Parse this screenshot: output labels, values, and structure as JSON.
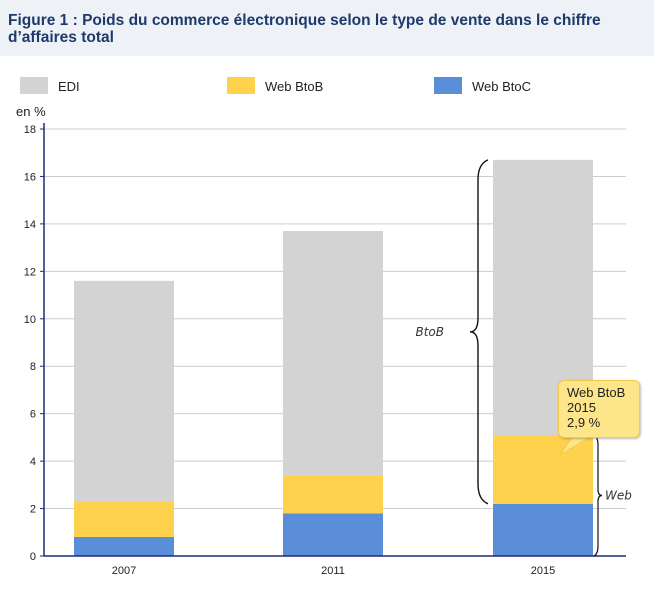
{
  "title": "Figure 1 : Poids du commerce électronique selon le type de vente dans le chiffre d’affaires total",
  "colors": {
    "EDI": "#d3d3d3",
    "Web BtoB": "#ffd24d",
    "Web BtoC": "#5a8ed9",
    "axis": "#1d2a7a",
    "header_bg": "#eef2f7"
  },
  "chart_data": {
    "type": "bar",
    "stacked": true,
    "categories": [
      "2007",
      "2011",
      "2015"
    ],
    "series": [
      {
        "name": "Web BtoC",
        "values": [
          0.8,
          1.8,
          2.2
        ]
      },
      {
        "name": "Web BtoB",
        "values": [
          1.5,
          1.6,
          2.9
        ]
      },
      {
        "name": "EDI",
        "values": [
          9.3,
          10.3,
          11.6
        ]
      }
    ],
    "legend": [
      "EDI",
      "Web BtoB",
      "Web BtoC"
    ],
    "legend_position": "top",
    "ylabel": "en %",
    "ylim": [
      0,
      18
    ],
    "yticks": [
      0,
      2,
      4,
      6,
      8,
      10,
      12,
      14,
      16,
      18
    ],
    "grid": true,
    "annotations": [
      "BtoB",
      "Web"
    ],
    "tooltip": {
      "series": "Web BtoB",
      "category": "2015",
      "value": "2,9 %"
    }
  }
}
